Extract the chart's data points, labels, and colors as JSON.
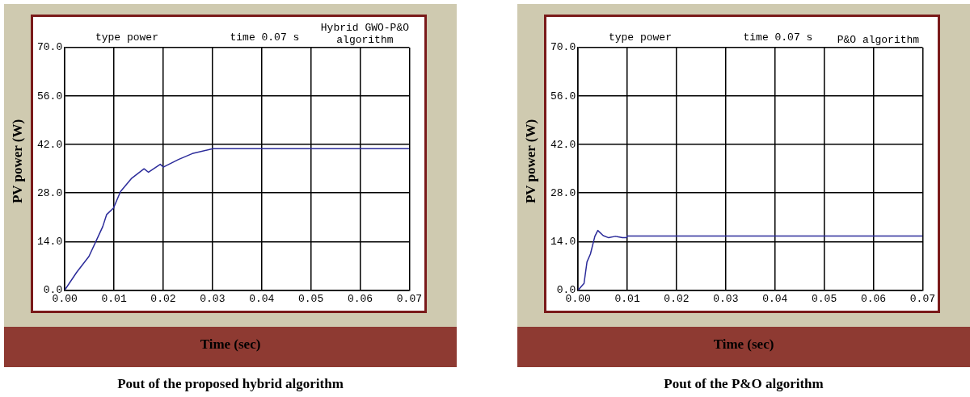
{
  "chart_data": [
    {
      "type": "line",
      "title": "Pout of the proposed hybrid algorithm",
      "xlabel": "Time (sec)",
      "ylabel": "PV power (W)",
      "annotations": [
        "type power",
        "time 0.07 s",
        "Hybrid GWO-P&O algorithm"
      ],
      "series": [
        {
          "color": "#2b2b9a",
          "x": [
            0,
            0.0024,
            0.0049,
            0.0063,
            0.0077,
            0.0085,
            0.0099,
            0.0113,
            0.0136,
            0.0161,
            0.017,
            0.0194,
            0.02,
            0.0231,
            0.0259,
            0.0301,
            0.07
          ],
          "values": [
            0,
            5.1,
            9.7,
            14,
            18.3,
            21.8,
            23.7,
            28.4,
            32.3,
            35,
            34,
            36.3,
            35.5,
            37.7,
            39.4,
            40.8,
            40.8
          ]
        }
      ],
      "xlim": [
        0,
        0.07
      ],
      "xticks": [
        {
          "value": 0,
          "label": "0.00"
        },
        {
          "value": 0.01,
          "label": "0.01"
        },
        {
          "value": 0.02,
          "label": "0.02"
        },
        {
          "value": 0.03,
          "label": "0.03"
        },
        {
          "value": 0.04,
          "label": "0.04"
        },
        {
          "value": 0.05,
          "label": "0.05"
        },
        {
          "value": 0.06,
          "label": "0.06"
        },
        {
          "value": 0.07,
          "label": "0.07"
        }
      ],
      "ylim": [
        0,
        70
      ],
      "yticks": [
        {
          "value": 0,
          "label": "0.0"
        },
        {
          "value": 14,
          "label": "14.0"
        },
        {
          "value": 28,
          "label": "28.0"
        },
        {
          "value": 42,
          "label": "42.0"
        },
        {
          "value": 56,
          "label": "56.0"
        },
        {
          "value": 70,
          "label": "70.0"
        }
      ],
      "grid": true,
      "legend": false,
      "marker": "none",
      "line_style": "solid"
    },
    {
      "type": "line",
      "title": "Pout of the P&O algorithm",
      "xlabel": "Time (sec)",
      "ylabel": "PV power (W)",
      "annotations": [
        "type power",
        "time 0.07 s",
        "P&O algorithm"
      ],
      "series": [
        {
          "color": "#2b2b9a",
          "x": [
            0,
            0.0012,
            0.0018,
            0.0025,
            0.0034,
            0.004,
            0.0051,
            0.0062,
            0.0076,
            0.009,
            0.0098,
            0.01,
            0.07
          ],
          "values": [
            0,
            1.9,
            8.1,
            10.4,
            15.5,
            17.2,
            15.7,
            15.1,
            15.5,
            15.1,
            15.1,
            15.6,
            15.6
          ]
        }
      ],
      "xlim": [
        0,
        0.07
      ],
      "xticks": [
        {
          "value": 0,
          "label": "0.00"
        },
        {
          "value": 0.01,
          "label": "0.01"
        },
        {
          "value": 0.02,
          "label": "0.02"
        },
        {
          "value": 0.03,
          "label": "0.03"
        },
        {
          "value": 0.04,
          "label": "0.04"
        },
        {
          "value": 0.05,
          "label": "0.05"
        },
        {
          "value": 0.06,
          "label": "0.06"
        },
        {
          "value": 0.07,
          "label": "0.07"
        }
      ],
      "ylim": [
        0,
        70
      ],
      "yticks": [
        {
          "value": 0,
          "label": "0.0"
        },
        {
          "value": 14,
          "label": "14.0"
        },
        {
          "value": 28,
          "label": "28.0"
        },
        {
          "value": 42,
          "label": "42.0"
        },
        {
          "value": 56,
          "label": "56.0"
        },
        {
          "value": 70,
          "label": "70.0"
        }
      ],
      "grid": true,
      "legend": false,
      "marker": "none",
      "line_style": "solid"
    }
  ]
}
